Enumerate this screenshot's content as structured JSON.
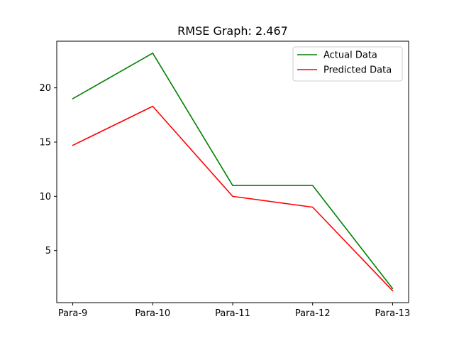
{
  "chart_data": {
    "type": "line",
    "title": "RMSE Graph: 2.467",
    "xlabel": "",
    "ylabel": "",
    "categories": [
      "Para-9",
      "Para-10",
      "Para-11",
      "Para-12",
      "Para-13"
    ],
    "yticks": [
      5,
      10,
      15,
      20
    ],
    "ylim": [
      0.2,
      24.3
    ],
    "grid": false,
    "legend_position": "top-right",
    "series": [
      {
        "name": "Actual Data",
        "color": "#008000",
        "values": [
          19.0,
          23.2,
          11.0,
          11.0,
          1.5
        ]
      },
      {
        "name": "Predicted Data",
        "color": "#ff0000",
        "values": [
          14.7,
          18.3,
          10.0,
          9.0,
          1.3
        ]
      }
    ]
  }
}
